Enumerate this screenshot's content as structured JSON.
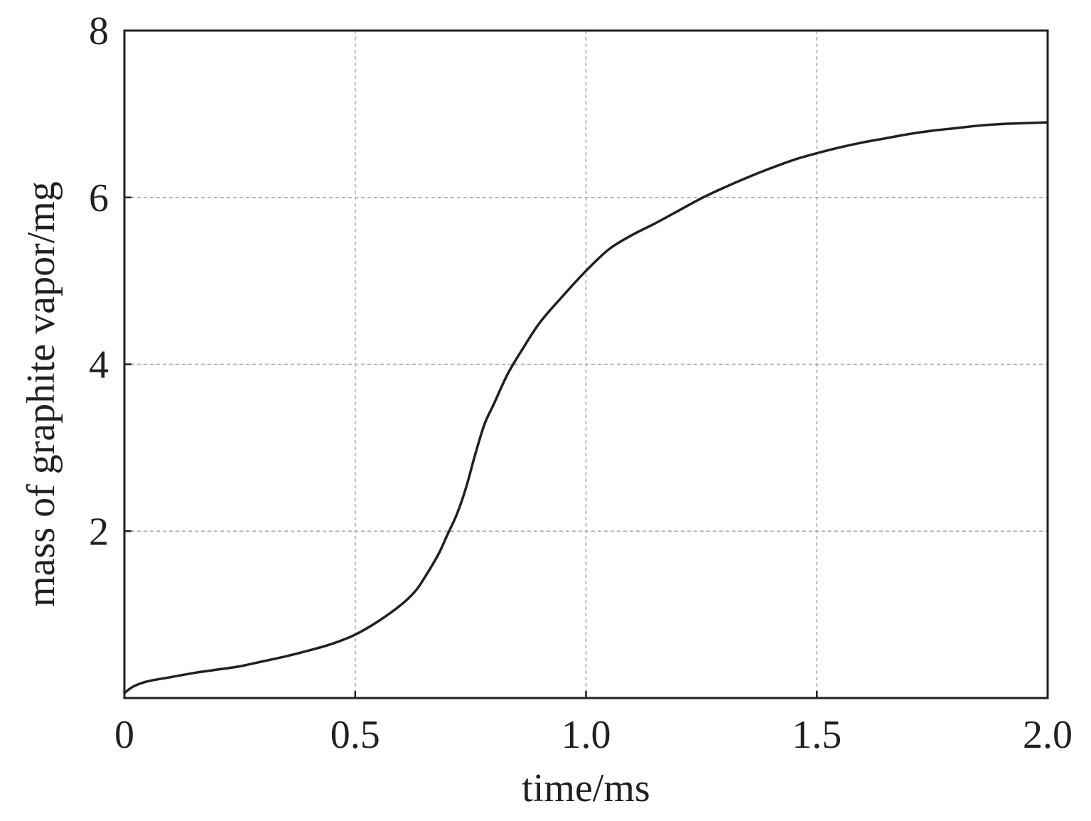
{
  "chart_data": {
    "type": "line",
    "title": "",
    "xlabel": "time/ms",
    "ylabel": "mass of graphite vapor/mg",
    "xlim": [
      0,
      2.0
    ],
    "ylim": [
      0,
      8
    ],
    "x_ticks": [
      0,
      0.5,
      1.0,
      1.5,
      2.0
    ],
    "x_tick_labels": [
      "0",
      "0.5",
      "1.0",
      "1.5",
      "2.0"
    ],
    "y_ticks": [
      2,
      4,
      6,
      8
    ],
    "y_tick_labels": [
      "2",
      "4",
      "6",
      "8"
    ],
    "grid": true,
    "legend": "none",
    "colors": {
      "line": "#231f20",
      "grid": "#a6a6a6",
      "frame": "#231f20"
    },
    "series": [
      {
        "x": [
          0.0,
          0.02,
          0.05,
          0.1,
          0.15,
          0.2,
          0.25,
          0.3,
          0.35,
          0.4,
          0.45,
          0.5,
          0.55,
          0.6,
          0.63,
          0.65,
          0.68,
          0.7,
          0.72,
          0.74,
          0.76,
          0.78,
          0.8,
          0.83,
          0.86,
          0.9,
          0.95,
          1.0,
          1.05,
          1.1,
          1.15,
          1.2,
          1.25,
          1.3,
          1.35,
          1.4,
          1.45,
          1.5,
          1.55,
          1.6,
          1.65,
          1.7,
          1.75,
          1.8,
          1.85,
          1.9,
          1.95,
          2.0
        ],
        "y": [
          0.06,
          0.14,
          0.2,
          0.25,
          0.3,
          0.34,
          0.38,
          0.44,
          0.5,
          0.57,
          0.65,
          0.76,
          0.92,
          1.12,
          1.28,
          1.44,
          1.72,
          1.96,
          2.2,
          2.52,
          2.92,
          3.28,
          3.52,
          3.88,
          4.16,
          4.5,
          4.82,
          5.12,
          5.38,
          5.55,
          5.69,
          5.84,
          5.99,
          6.12,
          6.24,
          6.35,
          6.45,
          6.53,
          6.6,
          6.66,
          6.71,
          6.76,
          6.8,
          6.83,
          6.86,
          6.88,
          6.89,
          6.9
        ]
      }
    ]
  }
}
